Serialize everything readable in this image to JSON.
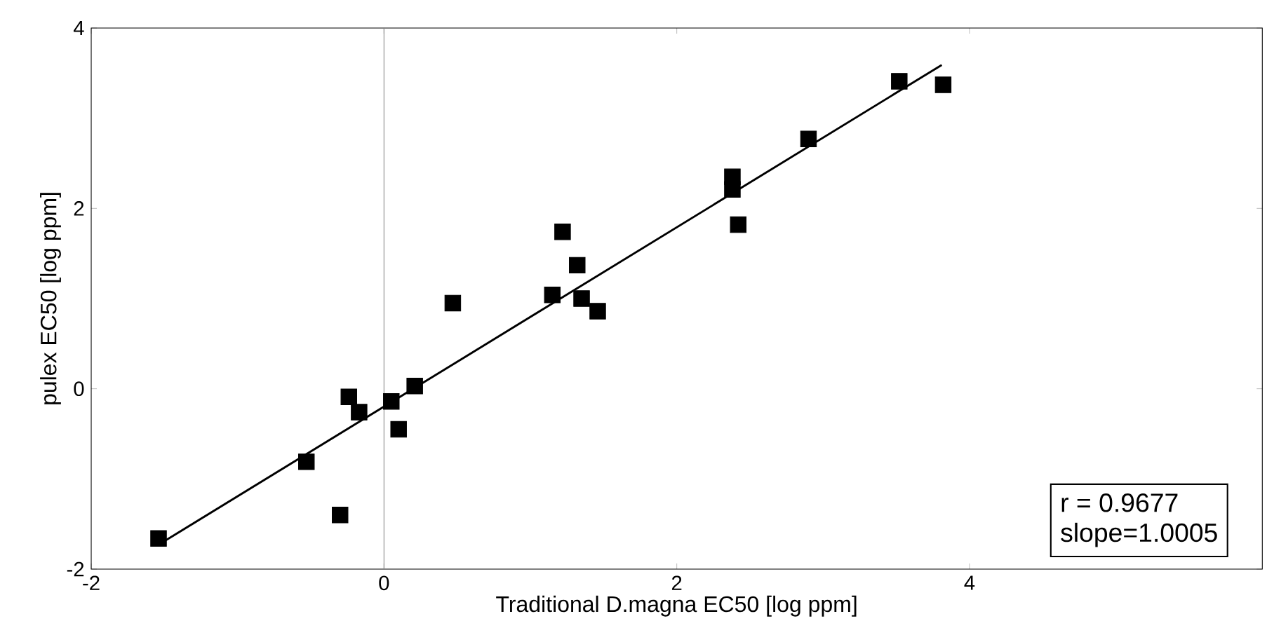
{
  "chart_data": {
    "type": "scatter",
    "xlabel": "Traditional D.magna EC50 [log ppm]",
    "ylabel": "pulex EC50 [log ppm]",
    "xlim": [
      -2,
      6
    ],
    "ylim": [
      -2,
      4
    ],
    "xticks": [
      -2,
      0,
      2,
      4
    ],
    "yticks": [
      -2,
      0,
      2,
      4
    ],
    "grid": false,
    "marker": "square",
    "annotations": [
      "r = 0.9677",
      "slope=1.0005"
    ],
    "ref_lines": [
      {
        "axis": "x",
        "value": 0,
        "color": "#888888"
      }
    ],
    "series": [
      {
        "color": "#000000",
        "x": [
          -1.54,
          -0.53,
          -0.3,
          -0.24,
          -0.17,
          0.05,
          0.1,
          0.21,
          0.47,
          1.15,
          1.22,
          1.32,
          1.35,
          1.46,
          2.38,
          2.38,
          2.42,
          2.9,
          3.52,
          3.82
        ],
        "values": [
          -1.66,
          -0.81,
          -1.4,
          -0.09,
          -0.26,
          -0.14,
          -0.45,
          0.03,
          0.95,
          1.04,
          1.74,
          1.37,
          1.0,
          0.86,
          2.35,
          2.21,
          1.82,
          2.77,
          3.41,
          3.37
        ]
      },
      {
        "type": "line",
        "color": "#000000",
        "marker": "none",
        "line_style": "solid",
        "x": [
          -1.49,
          3.81
        ],
        "values": [
          -1.68,
          3.59
        ]
      }
    ]
  }
}
